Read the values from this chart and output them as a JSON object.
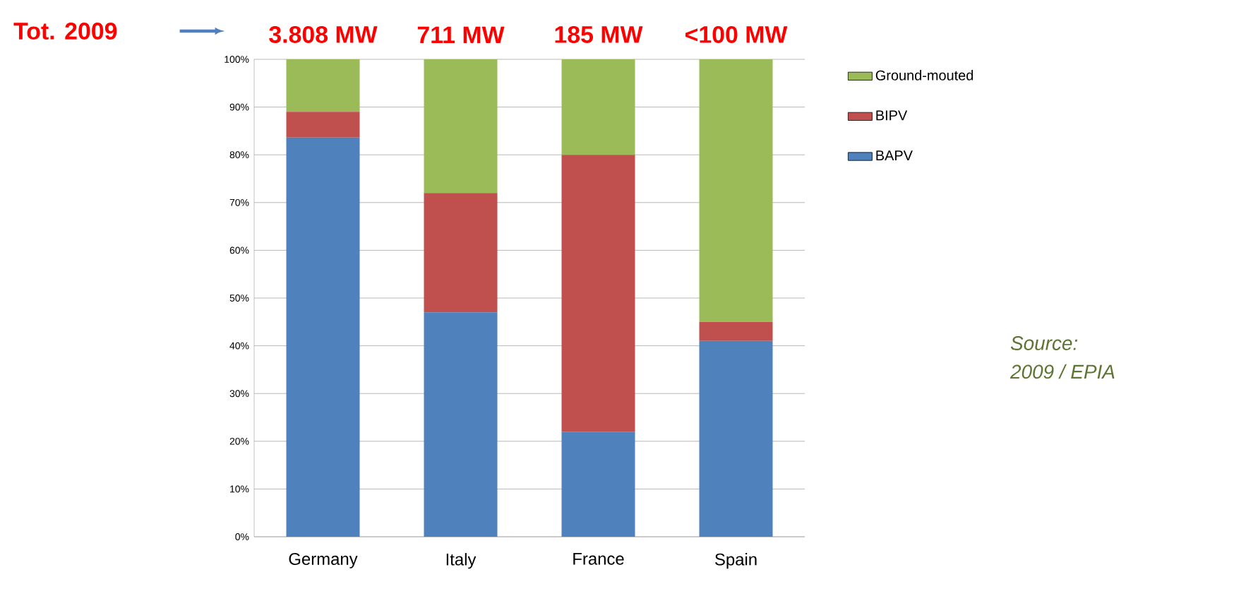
{
  "chart_data": {
    "type": "bar",
    "stacked": true,
    "categories": [
      "Germany",
      "Italy",
      "France",
      "Spain"
    ],
    "series": [
      {
        "name": "BAPV",
        "color": "#4f81bd",
        "values": [
          83.6,
          47,
          22,
          41
        ]
      },
      {
        "name": "BIPV",
        "color": "#c0504d",
        "values": [
          5.4,
          25,
          58,
          4
        ]
      },
      {
        "name": "Ground-mouted",
        "color": "#9bbb59",
        "values": [
          11,
          28,
          20,
          55
        ]
      }
    ],
    "ylim": [
      0,
      100
    ],
    "yticks": [
      {
        "value": 0,
        "label": "0%"
      },
      {
        "value": 10,
        "label": "10%"
      },
      {
        "value": 20,
        "label": "20%"
      },
      {
        "value": 30,
        "label": "30%"
      },
      {
        "value": 40,
        "label": "40%"
      },
      {
        "value": 50,
        "label": "50%"
      },
      {
        "value": 60,
        "label": "60%"
      },
      {
        "value": 70,
        "label": "70%"
      },
      {
        "value": 80,
        "label": "80%"
      },
      {
        "value": 90,
        "label": "90%"
      },
      {
        "value": 100,
        "label": "100%"
      }
    ],
    "grid": "y",
    "legend": "right",
    "annotations": [
      "Tot. 2009",
      {
        "text": "3.808 MW",
        "x": "Germany",
        "y": 100
      },
      {
        "text": "711 MW",
        "x": "Italy",
        "y": 100
      },
      {
        "text": "185 MW",
        "x": "France",
        "y": 100
      },
      {
        "text": "<100 MW",
        "x": "Spain",
        "y": 100
      },
      "Source:",
      "2009 / EPIA"
    ]
  }
}
